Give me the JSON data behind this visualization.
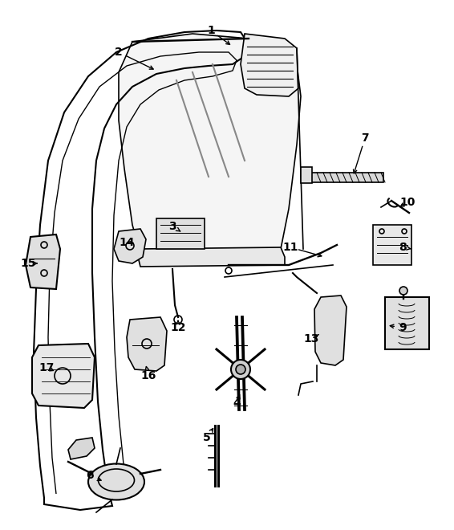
{
  "title": "",
  "background_color": "#ffffff",
  "line_color": "#000000",
  "part_labels": [
    [
      "1",
      263,
      38,
      290,
      58
    ],
    [
      "2",
      148,
      65,
      195,
      88
    ],
    [
      "3",
      215,
      282,
      228,
      290
    ],
    [
      "4",
      295,
      502,
      300,
      488
    ],
    [
      "5",
      258,
      545,
      268,
      530
    ],
    [
      "6",
      112,
      592,
      130,
      600
    ],
    [
      "7",
      455,
      172,
      440,
      220
    ],
    [
      "8",
      502,
      308,
      513,
      310
    ],
    [
      "9",
      502,
      408,
      482,
      405
    ],
    [
      "10",
      508,
      252,
      498,
      258
    ],
    [
      "11",
      362,
      308,
      405,
      320
    ],
    [
      "12",
      222,
      408,
      222,
      398
    ],
    [
      "13",
      388,
      422,
      400,
      415
    ],
    [
      "14",
      158,
      302,
      162,
      308
    ],
    [
      "15",
      35,
      328,
      50,
      328
    ],
    [
      "16",
      185,
      468,
      182,
      455
    ],
    [
      "17",
      58,
      458,
      68,
      462
    ]
  ],
  "figsize": [
    5.66,
    6.6
  ],
  "dpi": 100
}
